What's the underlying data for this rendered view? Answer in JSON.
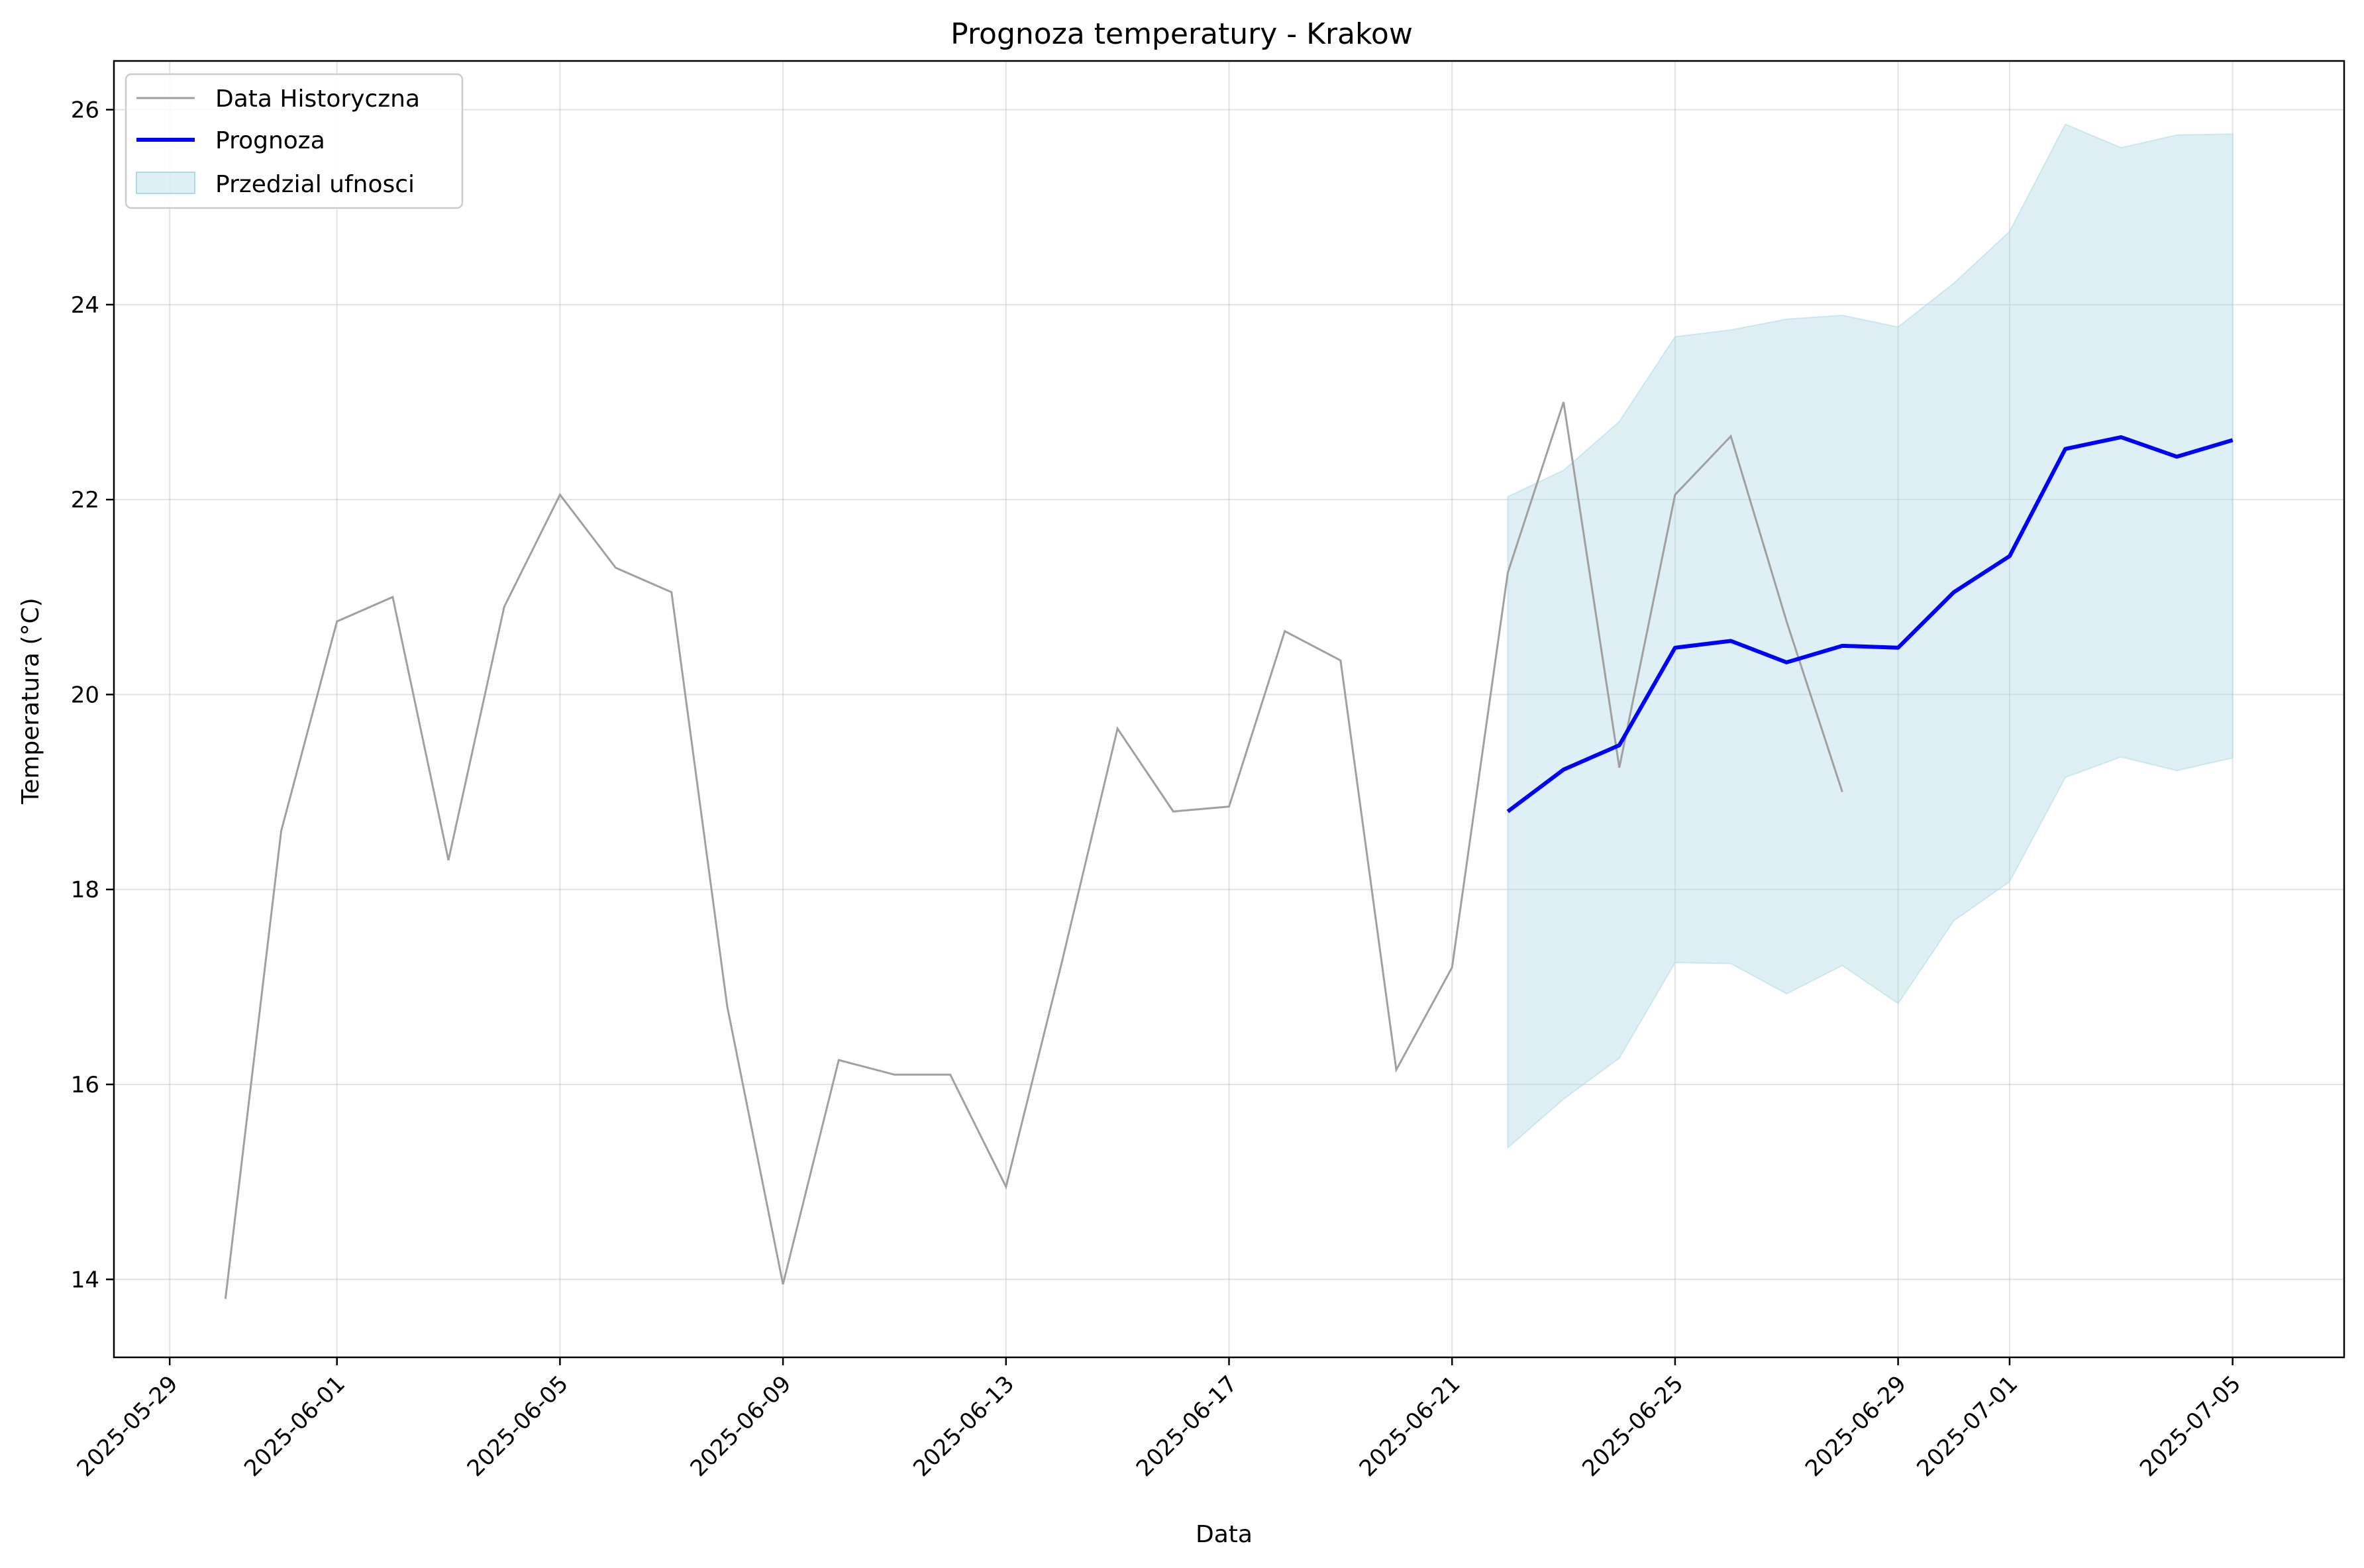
{
  "chart_data": {
    "type": "line",
    "title": "Prognoza temperatury - Krakow",
    "xlabel": "Data",
    "ylabel": "Temperatura (°C)",
    "xlim": [
      "2025-05-28",
      "2025-07-07"
    ],
    "ylim": [
      13.2,
      26.5
    ],
    "grid": true,
    "legend_position": "top-left",
    "x_ticks": [
      "2025-05-29",
      "2025-06-01",
      "2025-06-05",
      "2025-06-09",
      "2025-06-13",
      "2025-06-17",
      "2025-06-21",
      "2025-06-25",
      "2025-06-29",
      "2025-07-01",
      "2025-07-05"
    ],
    "y_ticks": [
      14,
      16,
      18,
      20,
      22,
      24,
      26
    ],
    "colors": {
      "historical": "#a0a0a0",
      "forecast": "#0000ff",
      "confidence": "#add8e6"
    },
    "series": [
      {
        "name": "Data Historyczna",
        "style": "line",
        "x": [
          "2025-05-30",
          "2025-05-31",
          "2025-06-01",
          "2025-06-02",
          "2025-06-03",
          "2025-06-04",
          "2025-06-05",
          "2025-06-06",
          "2025-06-07",
          "2025-06-08",
          "2025-06-09",
          "2025-06-10",
          "2025-06-11",
          "2025-06-12",
          "2025-06-13",
          "2025-06-14",
          "2025-06-15",
          "2025-06-16",
          "2025-06-17",
          "2025-06-18",
          "2025-06-19",
          "2025-06-20",
          "2025-06-21",
          "2025-06-22",
          "2025-06-23",
          "2025-06-24",
          "2025-06-25",
          "2025-06-26",
          "2025-06-27",
          "2025-06-28"
        ],
        "y": [
          13.8,
          18.6,
          20.75,
          21.0,
          18.3,
          20.9,
          22.05,
          21.3,
          21.05,
          16.8,
          13.95,
          16.25,
          16.1,
          16.1,
          14.95,
          17.25,
          19.65,
          18.8,
          18.85,
          20.65,
          20.35,
          16.15,
          17.2,
          21.25,
          23.0,
          19.25,
          22.05,
          22.65,
          20.75,
          19.0
        ]
      },
      {
        "name": "Prognoza",
        "style": "line",
        "x": [
          "2025-06-22",
          "2025-06-23",
          "2025-06-24",
          "2025-06-25",
          "2025-06-26",
          "2025-06-27",
          "2025-06-28",
          "2025-06-29",
          "2025-06-30",
          "2025-07-01",
          "2025-07-02",
          "2025-07-03",
          "2025-07-04",
          "2025-07-05"
        ],
        "y": [
          18.8,
          19.23,
          19.48,
          20.48,
          20.55,
          20.33,
          20.5,
          20.48,
          21.05,
          21.42,
          22.52,
          22.64,
          22.44,
          22.61
        ]
      },
      {
        "name": "Przedzial ufnosci",
        "style": "band",
        "x": [
          "2025-06-22",
          "2025-06-23",
          "2025-06-24",
          "2025-06-25",
          "2025-06-26",
          "2025-06-27",
          "2025-06-28",
          "2025-06-29",
          "2025-06-30",
          "2025-07-01",
          "2025-07-02",
          "2025-07-03",
          "2025-07-04",
          "2025-07-05"
        ],
        "lower": [
          15.35,
          15.85,
          16.27,
          17.25,
          17.24,
          16.93,
          17.22,
          16.83,
          17.68,
          18.08,
          19.15,
          19.36,
          19.22,
          19.35
        ],
        "upper": [
          22.03,
          22.3,
          22.8,
          23.67,
          23.74,
          23.85,
          23.89,
          23.77,
          24.22,
          24.75,
          25.85,
          25.61,
          25.74,
          25.75
        ]
      }
    ]
  }
}
